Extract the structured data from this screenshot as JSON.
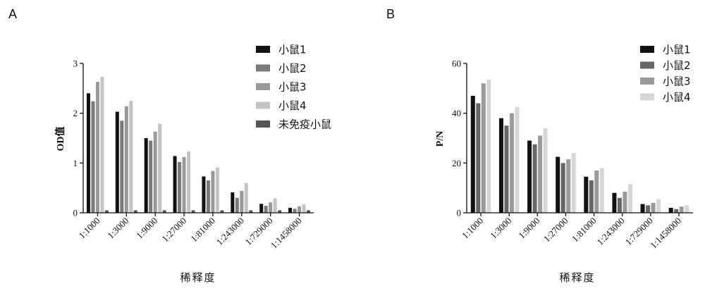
{
  "panels": [
    {
      "letter": "A",
      "chart_data": {
        "type": "bar",
        "categories": [
          "1:1000",
          "1:3000",
          "1:9000",
          "1:27000",
          "1:81000",
          "1:243000",
          "1:729000",
          "1:1458000"
        ],
        "series": [
          {
            "name": "小鼠1",
            "color": "#111111",
            "values": [
              2.4,
              2.03,
              1.5,
              1.14,
              0.73,
              0.41,
              0.18,
              0.1
            ]
          },
          {
            "name": "小鼠2",
            "color": "#7a7a7a",
            "values": [
              2.24,
              1.85,
              1.45,
              1.02,
              0.65,
              0.3,
              0.14,
              0.08
            ]
          },
          {
            "name": "小鼠3",
            "color": "#999999",
            "values": [
              2.63,
              2.14,
              1.63,
              1.12,
              0.84,
              0.44,
              0.21,
              0.13
            ]
          },
          {
            "name": "小鼠4",
            "color": "#c4c4c4",
            "values": [
              2.73,
              2.25,
              1.79,
              1.23,
              0.91,
              0.6,
              0.29,
              0.17
            ]
          },
          {
            "name": "未免疫小鼠",
            "color": "#555555",
            "values": [
              0.05,
              0.05,
              0.05,
              0.05,
              0.05,
              0.05,
              0.05,
              0.05
            ]
          }
        ],
        "xlabel": "稀释度",
        "ylabel": "OD值",
        "ylim": [
          0,
          3
        ],
        "yticks": [
          "0",
          "1",
          "2",
          "3"
        ],
        "legend": "right",
        "grid": false
      }
    },
    {
      "letter": "B",
      "chart_data": {
        "type": "bar",
        "categories": [
          "1:1000",
          "1:3000",
          "1:9000",
          "1:27000",
          "1:81000",
          "1:243000",
          "1:729000",
          "1:1458000"
        ],
        "series": [
          {
            "name": "小鼠1",
            "color": "#111111",
            "values": [
              47,
              38,
              29,
              22.5,
              14.5,
              8,
              3.5,
              2
            ]
          },
          {
            "name": "小鼠2",
            "color": "#666666",
            "values": [
              44,
              35,
              27.5,
              20,
              13,
              6,
              3,
              1.5
            ]
          },
          {
            "name": "小鼠3",
            "color": "#9a9a9a",
            "values": [
              52,
              40,
              31,
              21.5,
              17,
              8.5,
              4,
              2.5
            ]
          },
          {
            "name": "小鼠4",
            "color": "#d6d6d6",
            "values": [
              53.5,
              42.5,
              34,
              24,
              18,
              11.5,
              5.5,
              3
            ]
          }
        ],
        "xlabel": "稀释度",
        "ylabel": "P/N",
        "ylim": [
          0,
          60
        ],
        "yticks": [
          "0",
          "20",
          "40",
          "60"
        ],
        "legend": "right",
        "grid": false
      }
    }
  ]
}
